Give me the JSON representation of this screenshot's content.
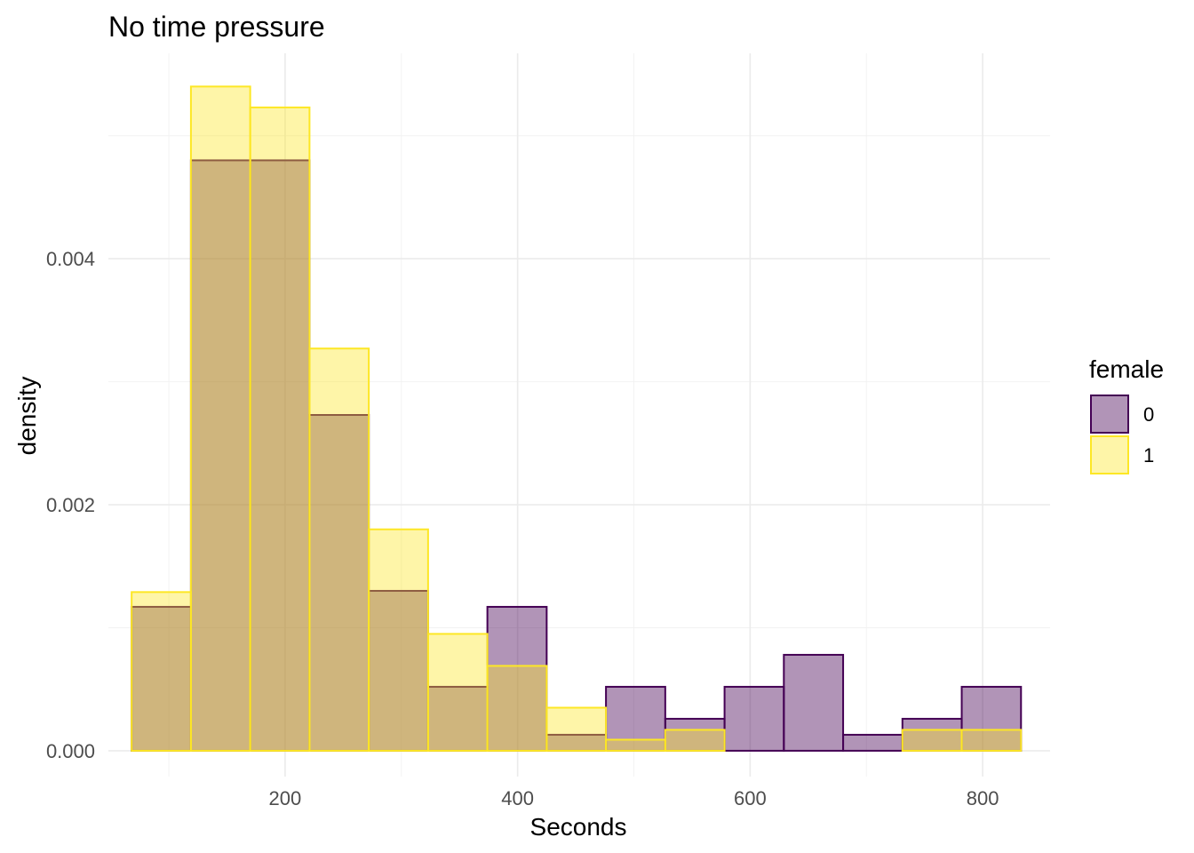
{
  "chart_data": {
    "type": "bar",
    "title": "No time pressure",
    "xlabel": "Seconds",
    "ylabel": "density",
    "xlim": [
      48,
      858
    ],
    "ylim": [
      -0.00021,
      0.00567
    ],
    "x_ticks": [
      200,
      400,
      600,
      800
    ],
    "x_tick_labels": [
      "200",
      "400",
      "600",
      "800"
    ],
    "y_ticks": [
      0.0,
      0.002,
      0.004
    ],
    "y_tick_labels": [
      "0.000",
      "0.002",
      "0.004"
    ],
    "grid": true,
    "bin_edges": [
      68,
      119,
      170,
      221,
      272,
      323,
      374,
      425,
      476,
      527,
      578,
      629,
      680,
      731,
      782,
      833
    ],
    "series": [
      {
        "name": "0",
        "fill": "#440154",
        "stroke": "#440154",
        "values": [
          0.00117,
          0.0048,
          0.0048,
          0.00273,
          0.0013,
          0.00052,
          0.00117,
          0.00013,
          0.00052,
          0.00026,
          0.00052,
          0.00078,
          0.00013,
          0.00026,
          0.00052
        ]
      },
      {
        "name": "1",
        "fill": "#FDE725",
        "stroke": "#FDE725",
        "values": [
          0.00129,
          0.0054,
          0.00523,
          0.00327,
          0.0018,
          0.00095,
          0.00069,
          0.00035,
          9e-05,
          0.00017,
          0.0,
          0.0,
          0.0,
          0.00017,
          0.00017
        ]
      }
    ],
    "legend": {
      "title": "female",
      "position": "right",
      "entries": [
        "0",
        "1"
      ]
    }
  }
}
